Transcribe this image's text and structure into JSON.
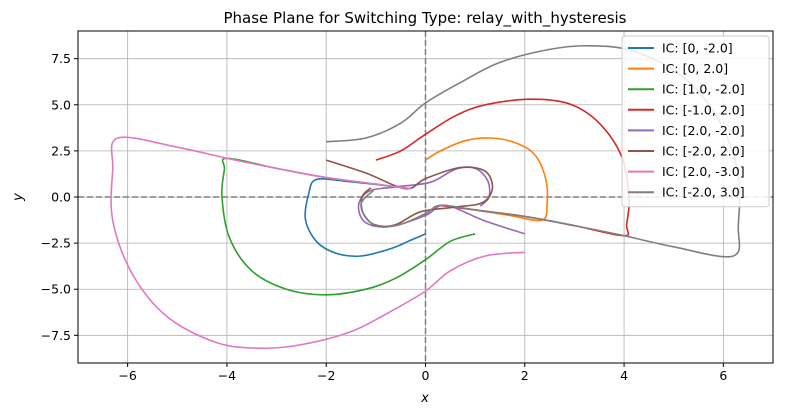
{
  "chart_data": {
    "type": "line",
    "title": "Phase Plane for Switching Type: relay_with_hysteresis",
    "xlabel": "x",
    "ylabel": "y",
    "xlim": [
      -7,
      7
    ],
    "ylim": [
      -9,
      9
    ],
    "xticks": [
      -6,
      -4,
      -2,
      0,
      2,
      4,
      6
    ],
    "xtick_labels": [
      "−6",
      "−4",
      "−2",
      "0",
      "2",
      "4",
      "6"
    ],
    "yticks": [
      -7.5,
      -5.0,
      -2.5,
      0.0,
      2.5,
      5.0,
      7.5
    ],
    "ytick_labels": [
      "−7.5",
      "−5.0",
      "−2.5",
      "0.0",
      "2.5",
      "5.0",
      "7.5"
    ],
    "grid": true,
    "reference_lines": [
      "x = 0 (dashed)",
      "y = 0 (dashed)"
    ],
    "legend_position": "top-right",
    "series": [
      {
        "name": "IC: [0, -2.0]",
        "color": "#1f77b4",
        "points": [
          [
            0,
            -2
          ],
          [
            -0.3,
            -2.35
          ],
          [
            -0.7,
            -2.8
          ],
          [
            -1.3,
            -3.2
          ],
          [
            -1.8,
            -3.05
          ],
          [
            -2.2,
            -2.4
          ],
          [
            -2.42,
            -1.2
          ],
          [
            -2.35,
            0.2
          ],
          [
            -2.2,
            0.95
          ],
          [
            -1.6,
            0.85
          ],
          [
            -0.9,
            0.65
          ],
          [
            -0.3,
            0.45
          ]
        ]
      },
      {
        "name": "IC: [0, 2.0]",
        "color": "#ff7f0e",
        "points": [
          [
            0,
            2
          ],
          [
            0.3,
            2.5
          ],
          [
            0.8,
            3.05
          ],
          [
            1.3,
            3.2
          ],
          [
            1.8,
            2.95
          ],
          [
            2.2,
            2.3
          ],
          [
            2.42,
            1.0
          ],
          [
            2.45,
            -0.3
          ],
          [
            2.35,
            -1.25
          ],
          [
            1.7,
            -1.0
          ],
          [
            1.0,
            -0.7
          ],
          [
            0.3,
            -0.45
          ]
        ]
      },
      {
        "name": "IC: [1.0, -2.0]",
        "color": "#2ca02c",
        "points": [
          [
            1,
            -2
          ],
          [
            0.5,
            -2.4
          ],
          [
            0,
            -3.4
          ],
          [
            -0.6,
            -4.4
          ],
          [
            -1.2,
            -5.0
          ],
          [
            -2,
            -5.3
          ],
          [
            -2.8,
            -5.0
          ],
          [
            -3.5,
            -4.0
          ],
          [
            -3.95,
            -2.2
          ],
          [
            -4.1,
            0
          ],
          [
            -4.05,
            1.5
          ],
          [
            -4,
            2.1
          ],
          [
            -3.0,
            1.55
          ],
          [
            -2.0,
            1.05
          ],
          [
            -1.0,
            0.7
          ],
          [
            -0.3,
            0.45
          ]
        ]
      },
      {
        "name": "IC: [-1.0, 2.0]",
        "color": "#d62728",
        "points": [
          [
            -1,
            2
          ],
          [
            -0.5,
            2.5
          ],
          [
            0,
            3.4
          ],
          [
            0.6,
            4.4
          ],
          [
            1.2,
            5.0
          ],
          [
            2.1,
            5.3
          ],
          [
            2.9,
            5.05
          ],
          [
            3.5,
            4.0
          ],
          [
            3.95,
            2.2
          ],
          [
            4.1,
            0
          ],
          [
            4.05,
            -1.5
          ],
          [
            4,
            -2.1
          ],
          [
            3.0,
            -1.55
          ],
          [
            2.0,
            -1.05
          ],
          [
            1.0,
            -0.7
          ],
          [
            0.3,
            -0.45
          ]
        ]
      },
      {
        "name": "IC: [2.0, -2.0]",
        "color": "#9467bd",
        "points": [
          [
            2,
            -2
          ],
          [
            1.2,
            -1.3
          ],
          [
            0.4,
            -0.45
          ],
          [
            0,
            -1.0
          ],
          [
            -0.7,
            -1.6
          ],
          [
            -1.2,
            -1.4
          ],
          [
            -1.35,
            -0.5
          ],
          [
            -1.15,
            0.3
          ],
          [
            -0.6,
            0.55
          ],
          [
            0.1,
            0.8
          ],
          [
            0.6,
            1.5
          ],
          [
            1.0,
            1.55
          ],
          [
            1.25,
            0.9
          ],
          [
            1.28,
            0
          ],
          [
            1.1,
            -0.5
          ]
        ]
      },
      {
        "name": "IC: [-2.0, 2.0]",
        "color": "#8c564b",
        "points": [
          [
            -2,
            2
          ],
          [
            -1.2,
            1.3
          ],
          [
            -0.4,
            0.45
          ],
          [
            0,
            1.0
          ],
          [
            0.7,
            1.6
          ],
          [
            1.2,
            1.4
          ],
          [
            1.35,
            0.5
          ],
          [
            1.15,
            -0.3
          ],
          [
            0.6,
            -0.55
          ],
          [
            -0.1,
            -0.8
          ],
          [
            -0.6,
            -1.5
          ],
          [
            -1.0,
            -1.55
          ],
          [
            -1.25,
            -0.9
          ],
          [
            -1.28,
            0
          ],
          [
            -1.1,
            0.5
          ]
        ]
      },
      {
        "name": "IC: [2.0, -3.0]",
        "color": "#e377c2",
        "points": [
          [
            2,
            -3
          ],
          [
            1.2,
            -3.2
          ],
          [
            0.5,
            -4.0
          ],
          [
            0,
            -5.1
          ],
          [
            -0.7,
            -6.2
          ],
          [
            -1.5,
            -7.3
          ],
          [
            -2.5,
            -8.0
          ],
          [
            -3.3,
            -8.2
          ],
          [
            -4.2,
            -7.9
          ],
          [
            -5.2,
            -6.5
          ],
          [
            -5.9,
            -4.2
          ],
          [
            -6.3,
            -1.3
          ],
          [
            -6.3,
            1.5
          ],
          [
            -6.2,
            3.2
          ],
          [
            -5.0,
            2.7
          ],
          [
            -4.0,
            2.1
          ],
          [
            -3.0,
            1.55
          ],
          [
            -2.0,
            1.05
          ],
          [
            -1.0,
            0.7
          ],
          [
            -0.3,
            0.45
          ]
        ]
      },
      {
        "name": "IC: [-2.0, 3.0]",
        "color": "#7f7f7f",
        "points": [
          [
            -2,
            3
          ],
          [
            -1.2,
            3.2
          ],
          [
            -0.5,
            4.0
          ],
          [
            0,
            5.1
          ],
          [
            0.7,
            6.2
          ],
          [
            1.5,
            7.3
          ],
          [
            2.5,
            8.0
          ],
          [
            3.3,
            8.2
          ],
          [
            4.2,
            7.9
          ],
          [
            5.2,
            6.5
          ],
          [
            5.9,
            4.2
          ],
          [
            6.3,
            1.3
          ],
          [
            6.3,
            -1.5
          ],
          [
            6.2,
            -3.2
          ],
          [
            5.0,
            -2.7
          ],
          [
            4.0,
            -2.1
          ],
          [
            3.0,
            -1.55
          ],
          [
            2.0,
            -1.05
          ],
          [
            1.0,
            -0.7
          ],
          [
            0.3,
            -0.45
          ],
          [
            0,
            -0.9
          ],
          [
            -0.6,
            -1.55
          ],
          [
            -1.1,
            -1.4
          ],
          [
            -1.3,
            -0.4
          ],
          [
            -1.05,
            0.35
          ]
        ]
      }
    ]
  }
}
